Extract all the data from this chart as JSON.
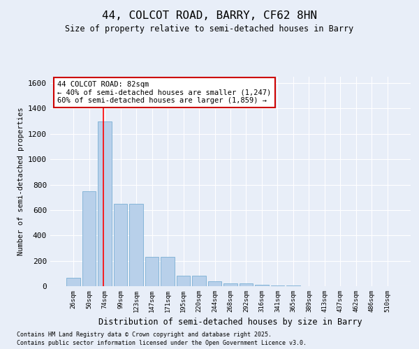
{
  "title": "44, COLCOT ROAD, BARRY, CF62 8HN",
  "subtitle": "Size of property relative to semi-detached houses in Barry",
  "xlabel": "Distribution of semi-detached houses by size in Barry",
  "ylabel": "Number of semi-detached properties",
  "categories": [
    "26sqm",
    "50sqm",
    "74sqm",
    "99sqm",
    "123sqm",
    "147sqm",
    "171sqm",
    "195sqm",
    "220sqm",
    "244sqm",
    "268sqm",
    "292sqm",
    "316sqm",
    "341sqm",
    "365sqm",
    "389sqm",
    "413sqm",
    "437sqm",
    "462sqm",
    "486sqm",
    "510sqm"
  ],
  "values": [
    65,
    750,
    1300,
    650,
    650,
    230,
    230,
    80,
    80,
    40,
    20,
    20,
    10,
    5,
    5,
    0,
    0,
    0,
    0,
    0,
    0
  ],
  "bar_color": "#b8d0ea",
  "bar_edge_color": "#7aafd4",
  "background_color": "#e8eef8",
  "grid_color": "#ffffff",
  "red_line_index": 1.93,
  "annotation_text": "44 COLCOT ROAD: 82sqm\n← 40% of semi-detached houses are smaller (1,247)\n60% of semi-detached houses are larger (1,859) →",
  "annotation_box_color": "#ffffff",
  "annotation_box_edge_color": "#cc0000",
  "ylim": [
    0,
    1650
  ],
  "yticks": [
    0,
    200,
    400,
    600,
    800,
    1000,
    1200,
    1400,
    1600
  ],
  "footer1": "Contains HM Land Registry data © Crown copyright and database right 2025.",
  "footer2": "Contains public sector information licensed under the Open Government Licence v3.0."
}
